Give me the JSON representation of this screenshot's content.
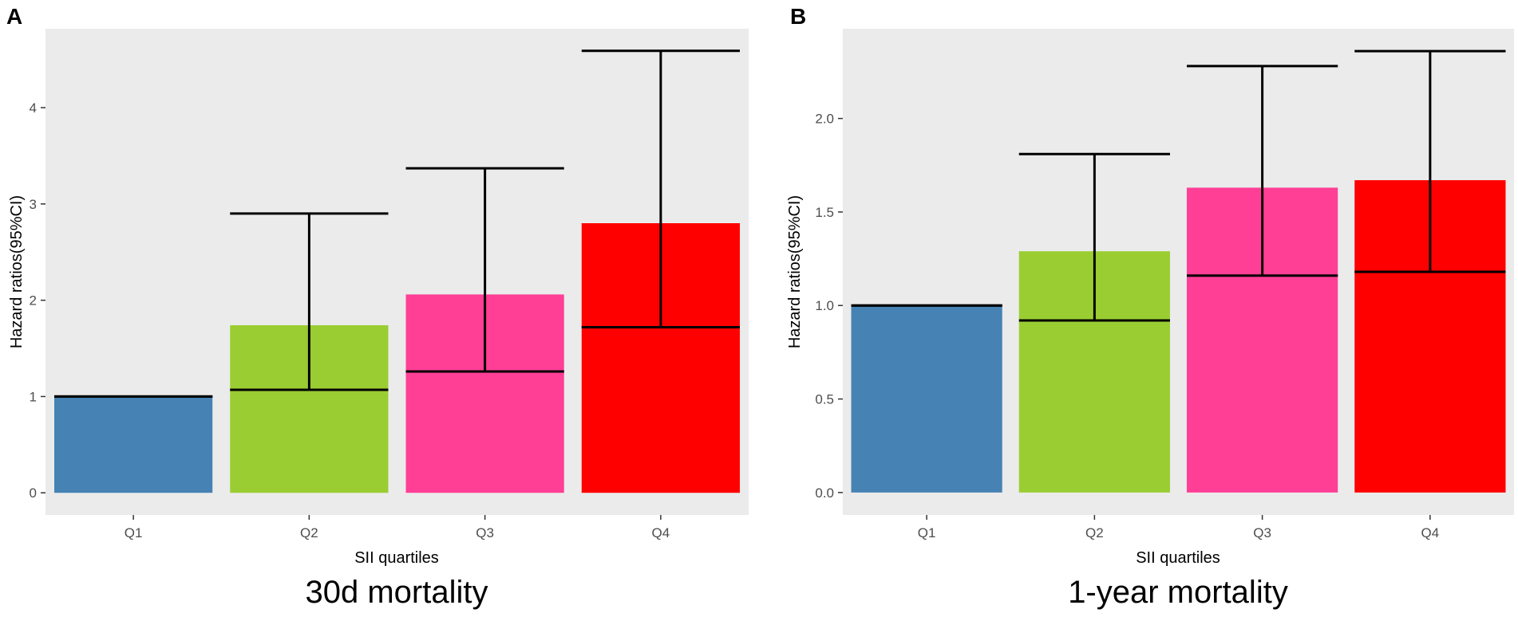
{
  "chart_data": [
    {
      "panel_label": "A",
      "type": "bar",
      "caption": "30d mortality",
      "xlabel": "SII quartiles",
      "ylabel": "Hazard ratios(95%CI)",
      "categories": [
        "Q1",
        "Q2",
        "Q3",
        "Q4"
      ],
      "values": [
        1.0,
        1.74,
        2.06,
        2.8
      ],
      "ci_lower": [
        1.0,
        1.07,
        1.26,
        1.72
      ],
      "ci_upper": [
        1.0,
        2.9,
        3.37,
        4.59
      ],
      "colors": [
        "#4682B4",
        "#9ACD32",
        "#FF3E96",
        "#FF0000"
      ],
      "yticks": [
        0,
        1,
        2,
        3,
        4
      ],
      "ytick_labels": [
        "0",
        "1",
        "2",
        "3",
        "4"
      ],
      "ylim": [
        -0.23,
        4.82
      ],
      "panel_background": "#EBEBEB"
    },
    {
      "panel_label": "B",
      "type": "bar",
      "caption": "1-year mortality",
      "xlabel": "SII quartiles",
      "ylabel": "Hazard ratios(95%CI)",
      "categories": [
        "Q1",
        "Q2",
        "Q3",
        "Q4"
      ],
      "values": [
        1.0,
        1.29,
        1.63,
        1.67
      ],
      "ci_lower": [
        1.0,
        0.92,
        1.16,
        1.18
      ],
      "ci_upper": [
        1.0,
        1.81,
        2.28,
        2.36
      ],
      "colors": [
        "#4682B4",
        "#9ACD32",
        "#FF3E96",
        "#FF0000"
      ],
      "yticks": [
        0,
        0.5,
        1,
        1.5,
        2
      ],
      "ytick_labels": [
        "0.0",
        "0.5",
        "1.0",
        "1.5",
        "2.0"
      ],
      "ylim": [
        -0.12,
        2.48
      ],
      "panel_background": "#EBEBEB"
    }
  ]
}
